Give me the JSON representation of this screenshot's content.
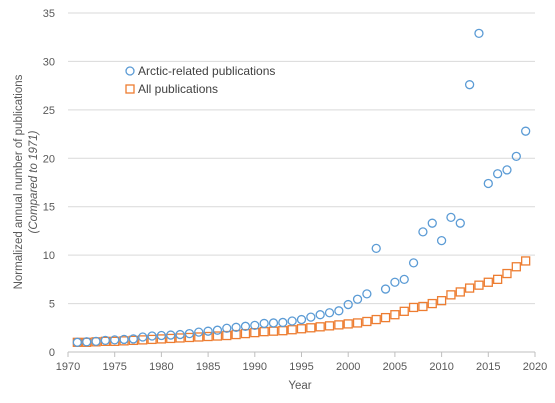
{
  "chart_data": {
    "type": "scatter",
    "xlabel": "Year",
    "ylabel": "Normalized annual number of publications",
    "ylabel_sub": "(Compared to 1971)",
    "xlim": [
      1970,
      2020
    ],
    "ylim": [
      0,
      35
    ],
    "x_ticks": [
      1970,
      1975,
      1980,
      1985,
      1990,
      1995,
      2000,
      2005,
      2010,
      2015,
      2020
    ],
    "y_ticks": [
      0,
      5,
      10,
      15,
      20,
      25,
      30,
      35
    ],
    "grid": "horizontal",
    "legend_position": "top-left",
    "x": [
      1971,
      1972,
      1973,
      1974,
      1975,
      1976,
      1977,
      1978,
      1979,
      1980,
      1981,
      1982,
      1983,
      1984,
      1985,
      1986,
      1987,
      1988,
      1989,
      1990,
      1991,
      1992,
      1993,
      1994,
      1995,
      1996,
      1997,
      1998,
      1999,
      2000,
      2001,
      2002,
      2003,
      2004,
      2005,
      2006,
      2007,
      2008,
      2009,
      2010,
      2011,
      2012,
      2013,
      2014,
      2015,
      2016,
      2017,
      2018,
      2019
    ],
    "series": [
      {
        "name": "Arctic-related publications",
        "marker": "circle",
        "color": "#5B9BD5",
        "values": [
          1.0,
          1.05,
          1.1,
          1.2,
          1.25,
          1.3,
          1.35,
          1.55,
          1.65,
          1.7,
          1.75,
          1.8,
          1.9,
          2.05,
          2.15,
          2.25,
          2.45,
          2.55,
          2.65,
          2.75,
          2.95,
          3.0,
          3.05,
          3.2,
          3.35,
          3.6,
          3.85,
          4.05,
          4.25,
          4.9,
          5.45,
          6.0,
          10.7,
          6.5,
          7.2,
          7.5,
          9.2,
          12.4,
          13.3,
          11.5,
          13.9,
          13.3,
          27.6,
          32.9,
          17.4,
          18.4,
          18.8,
          20.2,
          22.8
        ]
      },
      {
        "name": "All publications",
        "marker": "square",
        "color": "#ED7D31",
        "values": [
          1.0,
          1.0,
          1.05,
          1.1,
          1.1,
          1.15,
          1.2,
          1.25,
          1.3,
          1.35,
          1.4,
          1.45,
          1.5,
          1.55,
          1.6,
          1.65,
          1.7,
          1.8,
          1.9,
          2.0,
          2.1,
          2.15,
          2.2,
          2.3,
          2.4,
          2.5,
          2.6,
          2.7,
          2.8,
          2.9,
          3.0,
          3.15,
          3.35,
          3.55,
          3.85,
          4.2,
          4.6,
          4.7,
          5.0,
          5.3,
          5.9,
          6.2,
          6.6,
          6.9,
          7.2,
          7.5,
          8.1,
          8.8,
          9.4
        ]
      }
    ]
  }
}
